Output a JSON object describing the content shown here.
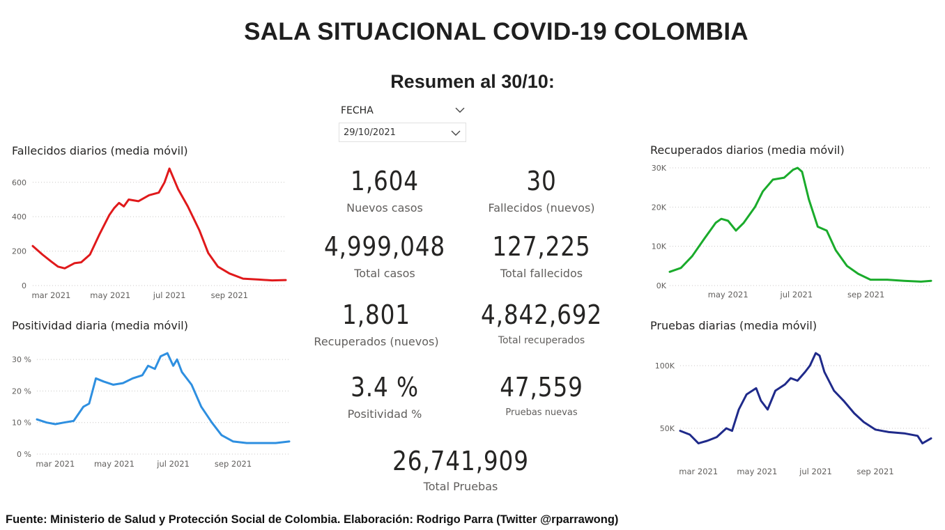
{
  "title": "SALA SITUACIONAL COVID-19 COLOMBIA",
  "subtitle": "Resumen al 30/10:",
  "slicer": {
    "label": "FECHA",
    "value": "29/10/2021",
    "icon": "chevron-down-icon"
  },
  "kpis": {
    "nuevos_casos": {
      "value": "1,604",
      "label": "Nuevos casos"
    },
    "fallecidos_nuevos": {
      "value": "30",
      "label": "Fallecidos (nuevos)"
    },
    "total_casos": {
      "value": "4,999,048",
      "label": "Total casos"
    },
    "total_fallecidos": {
      "value": "127,225",
      "label": "Total fallecidos"
    },
    "recuperados_nuevos": {
      "value": "1,801",
      "label": "Recuperados (nuevos)"
    },
    "total_recuperados": {
      "value": "4,842,692",
      "label": "Total recuperados"
    },
    "positividad": {
      "value": "3.4 %",
      "label": "Positividad %"
    },
    "pruebas_nuevas": {
      "value": "47,559",
      "label": "Pruebas nuevas"
    },
    "total_pruebas": {
      "value": "26,741,909",
      "label": "Total Pruebas"
    }
  },
  "footer": "Fuente: Ministerio de Salud y Protección Social de Colombia. Elaboración: Rodrigo Parra (Twitter @rparrawong)",
  "chart_data": [
    {
      "id": "fallecidos",
      "type": "line",
      "title": "Fallecidos diarios (media móvil)",
      "color": "#e0191b",
      "ylim": [
        0,
        680
      ],
      "yticks": [
        0,
        200,
        400,
        600
      ],
      "ytick_labels": [
        "0",
        "200",
        "400",
        "600"
      ],
      "xlim": [
        "2021-02-10",
        "2021-10-29"
      ],
      "xticks": [
        "2021-03-01",
        "2021-05-01",
        "2021-07-01",
        "2021-09-01"
      ],
      "xtick_labels": [
        "mar 2021",
        "may 2021",
        "jul 2021",
        "sep 2021"
      ],
      "grid": true,
      "x": [
        "2021-02-10",
        "2021-02-20",
        "2021-03-01",
        "2021-03-08",
        "2021-03-15",
        "2021-03-25",
        "2021-04-01",
        "2021-04-10",
        "2021-04-20",
        "2021-04-30",
        "2021-05-05",
        "2021-05-10",
        "2021-05-15",
        "2021-05-20",
        "2021-05-30",
        "2021-06-10",
        "2021-06-20",
        "2021-06-26",
        "2021-07-01",
        "2021-07-10",
        "2021-07-20",
        "2021-08-01",
        "2021-08-10",
        "2021-08-20",
        "2021-09-01",
        "2021-09-15",
        "2021-10-01",
        "2021-10-15",
        "2021-10-29"
      ],
      "y": [
        230,
        180,
        140,
        110,
        100,
        130,
        135,
        180,
        300,
        410,
        450,
        480,
        460,
        500,
        490,
        525,
        540,
        600,
        680,
        560,
        460,
        320,
        190,
        110,
        70,
        40,
        35,
        30,
        32
      ]
    },
    {
      "id": "positividad",
      "type": "line",
      "title": "Positividad diaria (media móvil)",
      "color": "#2e8fe0",
      "ylim": [
        0,
        34
      ],
      "yticks": [
        0,
        10,
        20,
        30
      ],
      "ytick_labels": [
        "0 %",
        "10 %",
        "20 %",
        "30 %"
      ],
      "xlim": [
        "2021-02-10",
        "2021-10-29"
      ],
      "xticks": [
        "2021-03-01",
        "2021-05-01",
        "2021-07-01",
        "2021-09-01"
      ],
      "xtick_labels": [
        "mar 2021",
        "may 2021",
        "jul 2021",
        "sep 2021"
      ],
      "grid": true,
      "x": [
        "2021-02-10",
        "2021-02-20",
        "2021-03-01",
        "2021-03-10",
        "2021-03-20",
        "2021-03-30",
        "2021-04-05",
        "2021-04-12",
        "2021-04-20",
        "2021-04-30",
        "2021-05-10",
        "2021-05-20",
        "2021-05-30",
        "2021-06-05",
        "2021-06-12",
        "2021-06-18",
        "2021-06-25",
        "2021-07-01",
        "2021-07-05",
        "2021-07-10",
        "2021-07-20",
        "2021-07-30",
        "2021-08-10",
        "2021-08-20",
        "2021-09-01",
        "2021-09-15",
        "2021-10-01",
        "2021-10-15",
        "2021-10-29"
      ],
      "y": [
        11,
        10,
        9.5,
        10,
        10.5,
        15,
        16,
        24,
        23,
        22,
        22.5,
        24,
        25,
        28,
        27,
        31,
        32,
        28,
        30,
        26,
        22,
        15,
        10,
        6,
        4,
        3.5,
        3.5,
        3.5,
        4
      ]
    },
    {
      "id": "recuperados",
      "type": "line",
      "title": "Recuperados diarios (media móvil)",
      "color": "#1aab2b",
      "ylim": [
        0,
        30000
      ],
      "yticks": [
        0,
        10000,
        20000,
        30000
      ],
      "ytick_labels": [
        "0K",
        "10K",
        "20K",
        "30K"
      ],
      "xlim": [
        "2021-03-10",
        "2021-10-29"
      ],
      "xticks": [
        "2021-05-01",
        "2021-07-01",
        "2021-09-01"
      ],
      "xtick_labels": [
        "may 2021",
        "jul 2021",
        "sep 2021"
      ],
      "grid": true,
      "x": [
        "2021-03-10",
        "2021-03-20",
        "2021-03-30",
        "2021-04-10",
        "2021-04-20",
        "2021-04-25",
        "2021-05-01",
        "2021-05-08",
        "2021-05-15",
        "2021-05-25",
        "2021-06-01",
        "2021-06-10",
        "2021-06-20",
        "2021-06-28",
        "2021-07-02",
        "2021-07-06",
        "2021-07-12",
        "2021-07-20",
        "2021-07-28",
        "2021-08-05",
        "2021-08-15",
        "2021-08-25",
        "2021-09-05",
        "2021-09-20",
        "2021-10-05",
        "2021-10-20",
        "2021-10-29"
      ],
      "y": [
        3500,
        4500,
        7500,
        12000,
        16000,
        17000,
        16500,
        14000,
        16000,
        20000,
        24000,
        27000,
        27500,
        29500,
        30000,
        29000,
        22000,
        15000,
        14000,
        9000,
        5000,
        3000,
        1500,
        1500,
        1200,
        1000,
        1200
      ]
    },
    {
      "id": "pruebas",
      "type": "line",
      "title": "Pruebas diarias (media móvil)",
      "color": "#1f2a8a",
      "ylim": [
        30000,
        115000
      ],
      "yticks": [
        50000,
        100000
      ],
      "ytick_labels": [
        "50K",
        "100K"
      ],
      "xlim": [
        "2021-02-10",
        "2021-10-29"
      ],
      "xticks": [
        "2021-03-01",
        "2021-05-01",
        "2021-07-01",
        "2021-09-01"
      ],
      "xtick_labels": [
        "mar 2021",
        "may 2021",
        "jul 2021",
        "sep 2021"
      ],
      "grid": true,
      "x": [
        "2021-02-10",
        "2021-02-20",
        "2021-03-01",
        "2021-03-10",
        "2021-03-20",
        "2021-03-30",
        "2021-04-05",
        "2021-04-12",
        "2021-04-20",
        "2021-04-30",
        "2021-05-05",
        "2021-05-12",
        "2021-05-20",
        "2021-05-30",
        "2021-06-05",
        "2021-06-12",
        "2021-06-20",
        "2021-06-25",
        "2021-07-01",
        "2021-07-05",
        "2021-07-10",
        "2021-07-20",
        "2021-07-30",
        "2021-08-10",
        "2021-08-20",
        "2021-09-01",
        "2021-09-15",
        "2021-10-01",
        "2021-10-15",
        "2021-10-20",
        "2021-10-29"
      ],
      "y": [
        48000,
        45000,
        38000,
        40000,
        43000,
        50000,
        48000,
        65000,
        77000,
        82000,
        72000,
        65000,
        80000,
        85000,
        90000,
        88000,
        95000,
        100000,
        110000,
        108000,
        95000,
        80000,
        72000,
        62000,
        55000,
        49000,
        47000,
        46000,
        44000,
        38000,
        42000
      ]
    }
  ]
}
